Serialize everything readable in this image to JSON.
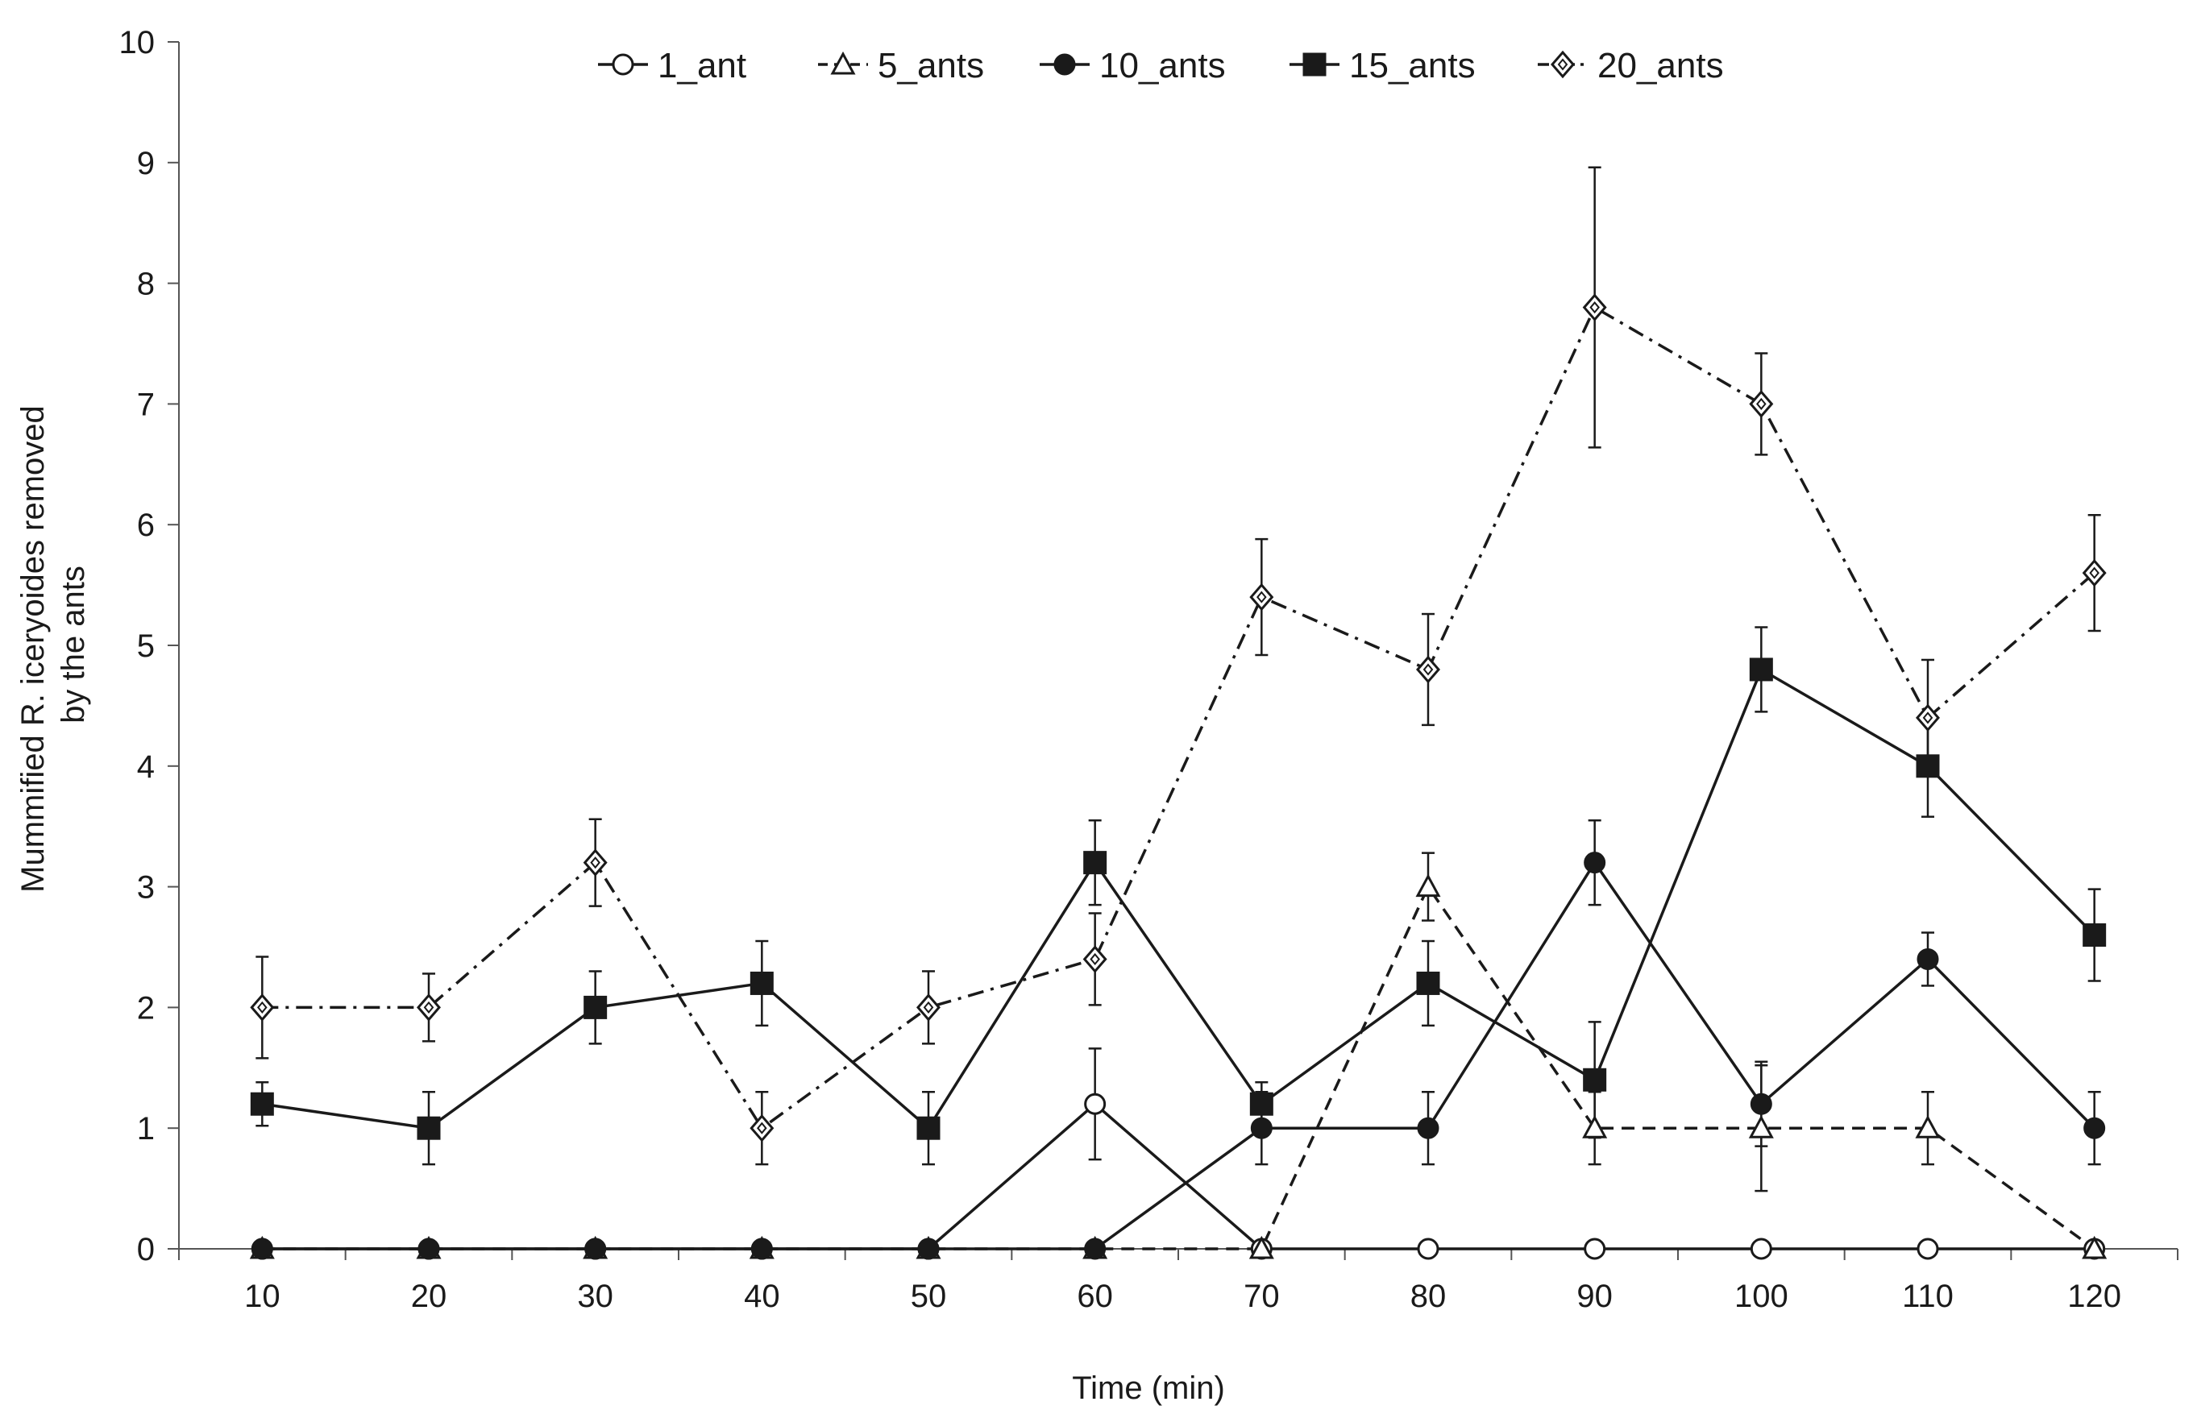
{
  "chart_data": {
    "type": "line",
    "title": "",
    "xlabel": "Time (min)",
    "ylabel_lines": [
      "Mummified R. iceryoides removed",
      "by the ants"
    ],
    "x": [
      10,
      20,
      30,
      40,
      50,
      60,
      70,
      80,
      90,
      100,
      110,
      120
    ],
    "x_tick_labels": [
      "10",
      "20",
      "30",
      "40",
      "50",
      "60",
      "70",
      "80",
      "90",
      "100",
      "110",
      "120"
    ],
    "ylim": [
      0,
      10
    ],
    "y_tick_labels": [
      "0",
      "1",
      "2",
      "3",
      "4",
      "5",
      "6",
      "7",
      "8",
      "9",
      "10"
    ],
    "grid": false,
    "legend_position": "top-center",
    "series": [
      {
        "name": "1_ant",
        "marker": "circle-open",
        "line": "solid",
        "values": [
          0,
          0,
          0,
          0,
          0,
          1.2,
          0,
          0,
          0,
          0,
          0,
          0
        ],
        "errors": [
          0,
          0,
          0,
          0,
          0,
          0.46,
          0,
          0,
          0,
          0,
          0,
          0
        ]
      },
      {
        "name": "5_ants",
        "marker": "triangle-open",
        "line": "dashed",
        "values": [
          0,
          0,
          0,
          0,
          0,
          0,
          0,
          3,
          1,
          1,
          1,
          0
        ],
        "errors": [
          0,
          0,
          0,
          0,
          0,
          0,
          0,
          0.28,
          0.3,
          0.52,
          0.3,
          0
        ]
      },
      {
        "name": "10_ants",
        "marker": "circle-filled",
        "line": "solid",
        "values": [
          0,
          0,
          0,
          0,
          0,
          0,
          1,
          1,
          3.2,
          1.2,
          2.4,
          1
        ],
        "errors": [
          0,
          0,
          0,
          0,
          0,
          0,
          0.3,
          0.3,
          0.35,
          0.35,
          0.22,
          0.3
        ]
      },
      {
        "name": "15_ants",
        "marker": "square-filled",
        "line": "solid",
        "values": [
          1.2,
          1,
          2,
          2.2,
          1,
          3.2,
          1.2,
          2.2,
          1.4,
          4.8,
          4,
          2.6
        ],
        "errors": [
          0.18,
          0.3,
          0.3,
          0.35,
          0.3,
          0.35,
          0.18,
          0.35,
          0.48,
          0.35,
          0.42,
          0.38
        ]
      },
      {
        "name": "20_ants",
        "marker": "diamond-open",
        "line": "dash-dot",
        "values": [
          2,
          2,
          3.2,
          1,
          2,
          2.4,
          5.4,
          4.8,
          7.8,
          7,
          4.4,
          5.6
        ],
        "errors": [
          0.42,
          0.28,
          0.36,
          0.3,
          0.3,
          0.38,
          0.48,
          0.46,
          1.16,
          0.42,
          0.48,
          0.48
        ]
      }
    ]
  }
}
